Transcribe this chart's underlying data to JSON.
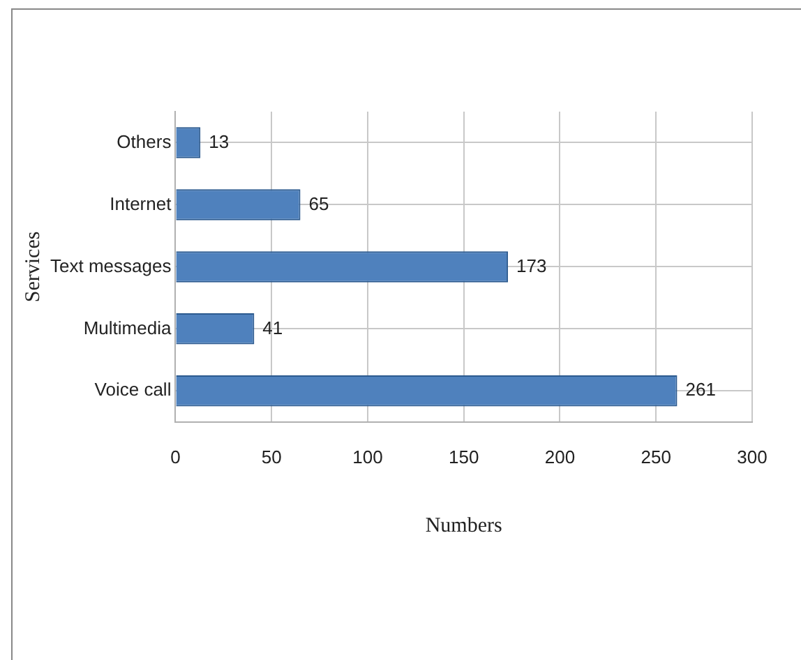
{
  "chart_data": {
    "type": "bar",
    "orientation": "horizontal",
    "xlabel": "Numbers",
    "ylabel": "Services",
    "categories": [
      "Others",
      "Internet",
      "Text messages",
      "Multimedia",
      "Voice call"
    ],
    "values": [
      13,
      65,
      173,
      41,
      261
    ],
    "color": "#4f81bd",
    "xlim": [
      0,
      300
    ],
    "xticks": [
      0,
      50,
      100,
      150,
      200,
      250,
      300
    ],
    "grid": true,
    "data_labels": true
  }
}
